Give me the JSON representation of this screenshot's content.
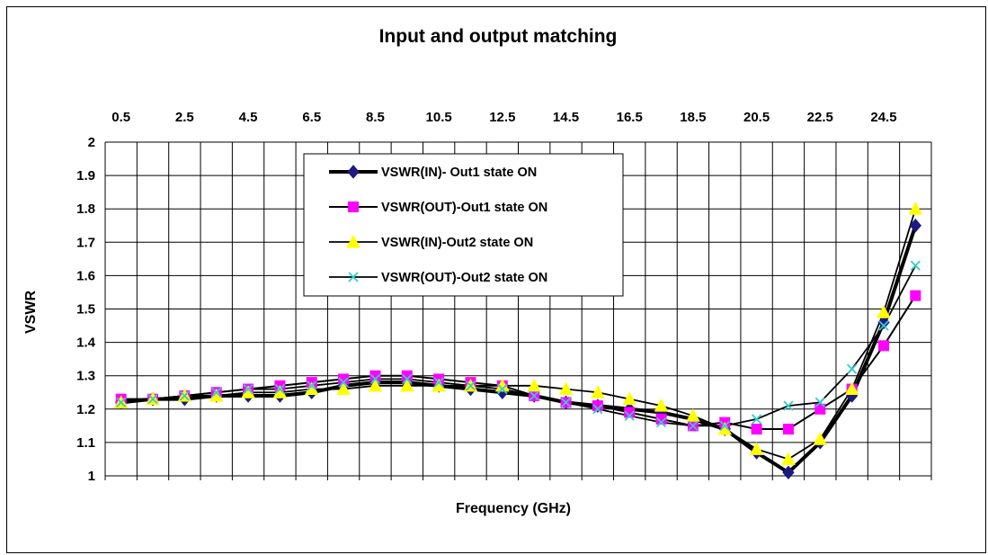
{
  "chart_data": {
    "type": "line",
    "title": "Input and output matching",
    "xlabel": "Frequency (GHz)",
    "ylabel": "VSWR",
    "x_tick_labels": [
      "0.5",
      "2.5",
      "4.5",
      "6.5",
      "8.5",
      "10.5",
      "12.5",
      "14.5",
      "16.5",
      "18.5",
      "20.5",
      "22.5",
      "24.5"
    ],
    "x": [
      0.5,
      1.5,
      2.5,
      3.5,
      4.5,
      5.5,
      6.5,
      7.5,
      8.5,
      9.5,
      10.5,
      11.5,
      12.5,
      13.5,
      14.5,
      15.5,
      16.5,
      17.5,
      18.5,
      19.5,
      20.5,
      21.5,
      22.5,
      23.5,
      24.5,
      25.5
    ],
    "xlim": [
      0,
      26
    ],
    "ylim": [
      1,
      2
    ],
    "y_ticks": [
      "1",
      "1.1",
      "1.2",
      "1.3",
      "1.4",
      "1.5",
      "1.6",
      "1.7",
      "1.8",
      "1.9",
      "2"
    ],
    "grid": true,
    "legend_position": "top-center",
    "series": [
      {
        "name": "VSWR(IN)- Out1 state ON",
        "color": "#1a1a80",
        "marker": "diamond",
        "values": [
          1.22,
          1.23,
          1.23,
          1.24,
          1.24,
          1.24,
          1.25,
          1.27,
          1.28,
          1.28,
          1.27,
          1.26,
          1.25,
          1.24,
          1.22,
          1.21,
          1.2,
          1.19,
          1.17,
          1.14,
          1.07,
          1.01,
          1.1,
          1.24,
          1.46,
          1.75
        ]
      },
      {
        "name": "VSWR(OUT)-Out1 state ON",
        "color": "#ff00ff",
        "marker": "square",
        "values": [
          1.23,
          1.23,
          1.24,
          1.25,
          1.26,
          1.27,
          1.28,
          1.29,
          1.3,
          1.3,
          1.29,
          1.28,
          1.27,
          1.24,
          1.22,
          1.21,
          1.19,
          1.17,
          1.15,
          1.16,
          1.14,
          1.14,
          1.2,
          1.26,
          1.39,
          1.54
        ]
      },
      {
        "name": "VSWR(IN)-Out2 state ON",
        "color": "#ffff00",
        "marker": "triangle",
        "values": [
          1.22,
          1.23,
          1.24,
          1.24,
          1.25,
          1.25,
          1.26,
          1.26,
          1.27,
          1.27,
          1.27,
          1.27,
          1.27,
          1.27,
          1.26,
          1.25,
          1.23,
          1.21,
          1.18,
          1.14,
          1.08,
          1.05,
          1.11,
          1.26,
          1.49,
          1.8
        ]
      },
      {
        "name": "VSWR(OUT)-Out2 state ON",
        "color": "#33cccc",
        "marker": "x",
        "values": [
          1.22,
          1.23,
          1.24,
          1.25,
          1.26,
          1.26,
          1.27,
          1.28,
          1.29,
          1.29,
          1.28,
          1.27,
          1.26,
          1.24,
          1.22,
          1.2,
          1.18,
          1.16,
          1.15,
          1.15,
          1.17,
          1.21,
          1.22,
          1.32,
          1.45,
          1.63
        ]
      }
    ]
  }
}
